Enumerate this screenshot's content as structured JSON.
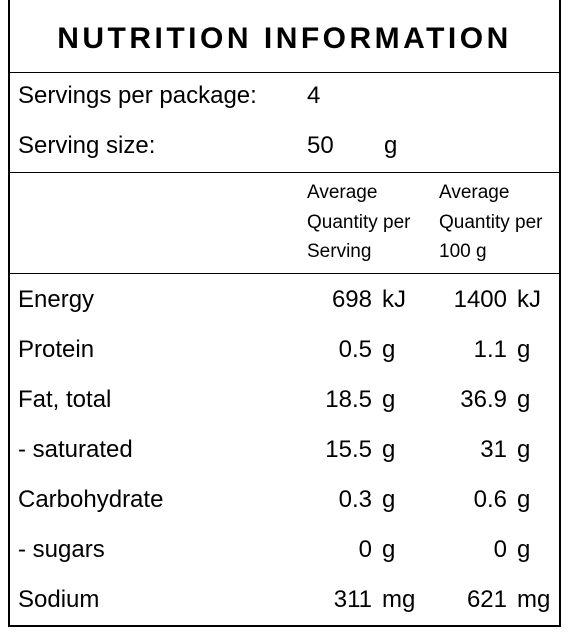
{
  "title": "NUTRITION INFORMATION",
  "servings": [
    {
      "label": "Servings per package:",
      "value": 4
    },
    {
      "label": "Serving size:",
      "value": 50,
      "unit": "g"
    }
  ],
  "table": {
    "columns": [
      [
        "Average",
        "Quantity per",
        "Serving"
      ],
      [
        "Average",
        "Quantity per",
        "100 g"
      ]
    ],
    "rows": [
      [
        "Energy",
        698,
        "kJ",
        1400,
        "kJ"
      ],
      [
        "Protein",
        0.5,
        "g",
        1.1,
        "g"
      ],
      [
        "Fat, total",
        18.5,
        "g",
        36.9,
        "g"
      ],
      [
        "- saturated",
        15.5,
        "g",
        31,
        "g"
      ],
      [
        "Carbohydrate",
        0.3,
        "g",
        0.6,
        "g"
      ],
      [
        "- sugars",
        0,
        "g",
        0,
        "g"
      ],
      [
        "Sodium",
        311,
        "mg",
        621,
        "mg"
      ]
    ]
  }
}
